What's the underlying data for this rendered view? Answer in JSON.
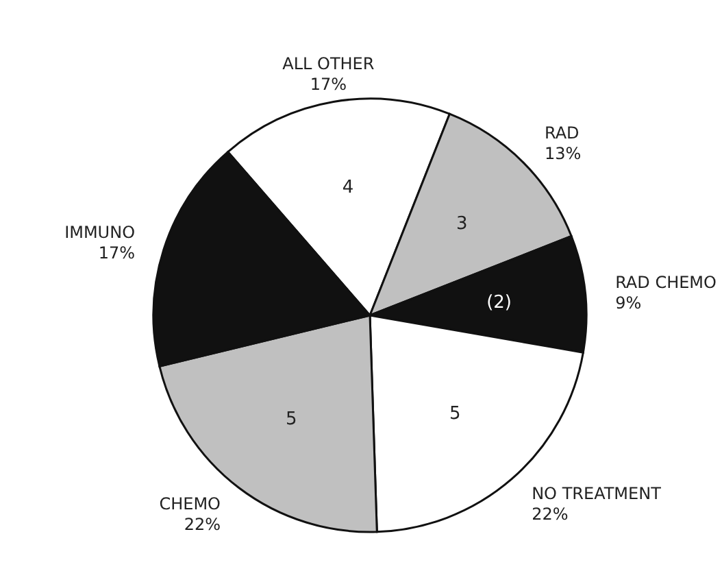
{
  "chart_data": {
    "type": "pie",
    "categories": [
      "ALL OTHER\n17%",
      "RAD\n13%",
      "RAD CHEMO\n9%",
      "NO TREATMENT\n22%",
      "CHEMO\n22%",
      "IMMUNO\n17%"
    ],
    "values": [
      4,
      3,
      2,
      5,
      5,
      4
    ],
    "colors": [
      "#ffffff",
      "#c0c0c0",
      "#111111",
      "#ffffff",
      "#c0c0c0",
      "#111111"
    ],
    "value_labels": [
      "4",
      "3",
      "(2)",
      "5",
      "5",
      null
    ]
  }
}
